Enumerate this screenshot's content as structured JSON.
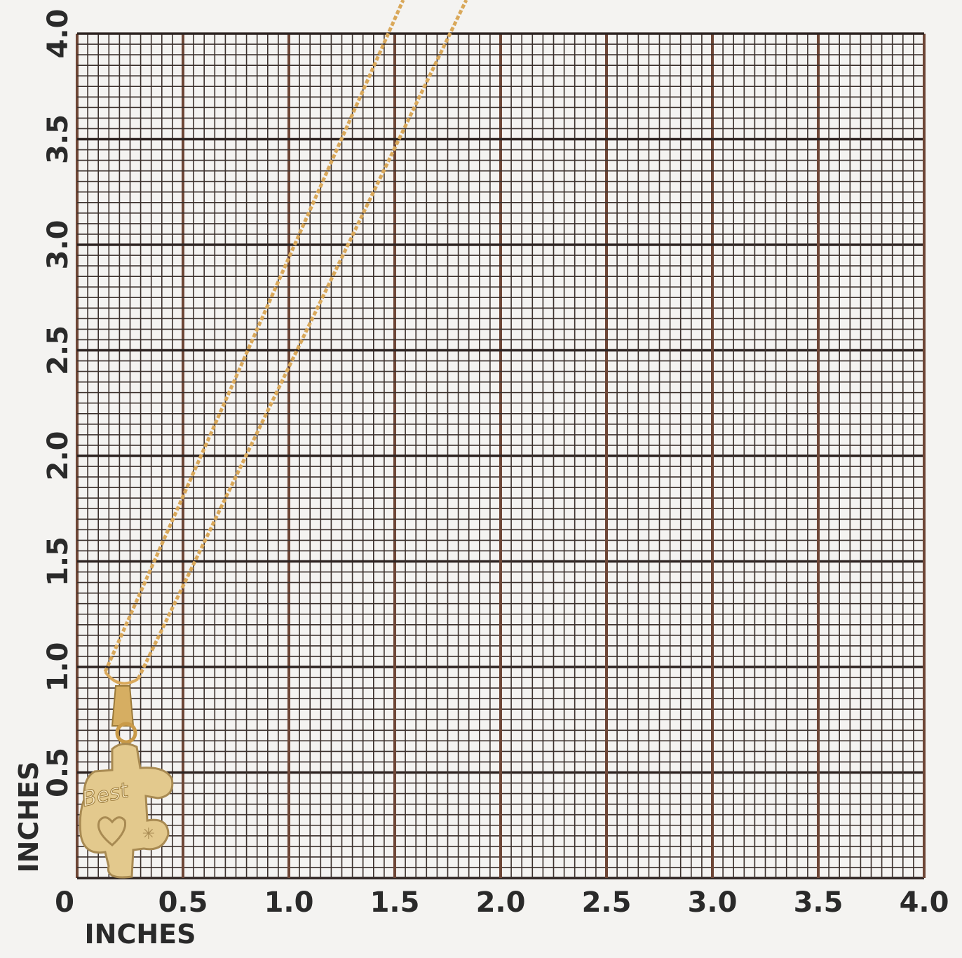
{
  "x_axis": {
    "labels": [
      "0",
      "0.5",
      "1.0",
      "1.5",
      "2.0",
      "2.5",
      "3.0",
      "3.5",
      "4.0"
    ],
    "title": "INCHES"
  },
  "y_axis": {
    "labels": [
      "0.5",
      "1.0",
      "1.5",
      "2.0",
      "2.5",
      "3.0",
      "3.5",
      "4.0"
    ],
    "title": "INCHES"
  },
  "pendant": {
    "text": "Best"
  }
}
